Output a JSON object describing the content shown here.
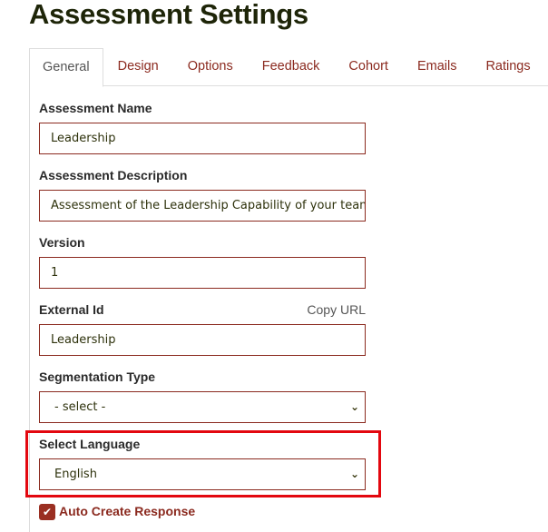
{
  "title": "Assessment Settings",
  "tabs": [
    "General",
    "Design",
    "Options",
    "Feedback",
    "Cohort",
    "Emails",
    "Ratings"
  ],
  "active_tab": "General",
  "fields": {
    "name": {
      "label": "Assessment Name",
      "value": "Leadership"
    },
    "description": {
      "label": "Assessment Description",
      "value": "Assessment of the Leadership Capability of your team"
    },
    "version": {
      "label": "Version",
      "value": "1"
    },
    "external_id": {
      "label": "External Id",
      "value": "Leadership",
      "link": "Copy URL"
    },
    "segmentation": {
      "label": "Segmentation Type",
      "value": "- select -"
    },
    "language": {
      "label": "Select Language",
      "value": "English"
    }
  },
  "auto_create": {
    "label": "Auto Create Response",
    "checked": true
  },
  "colors": {
    "accent": "#8b2a1f",
    "highlight": "#e3070f"
  }
}
